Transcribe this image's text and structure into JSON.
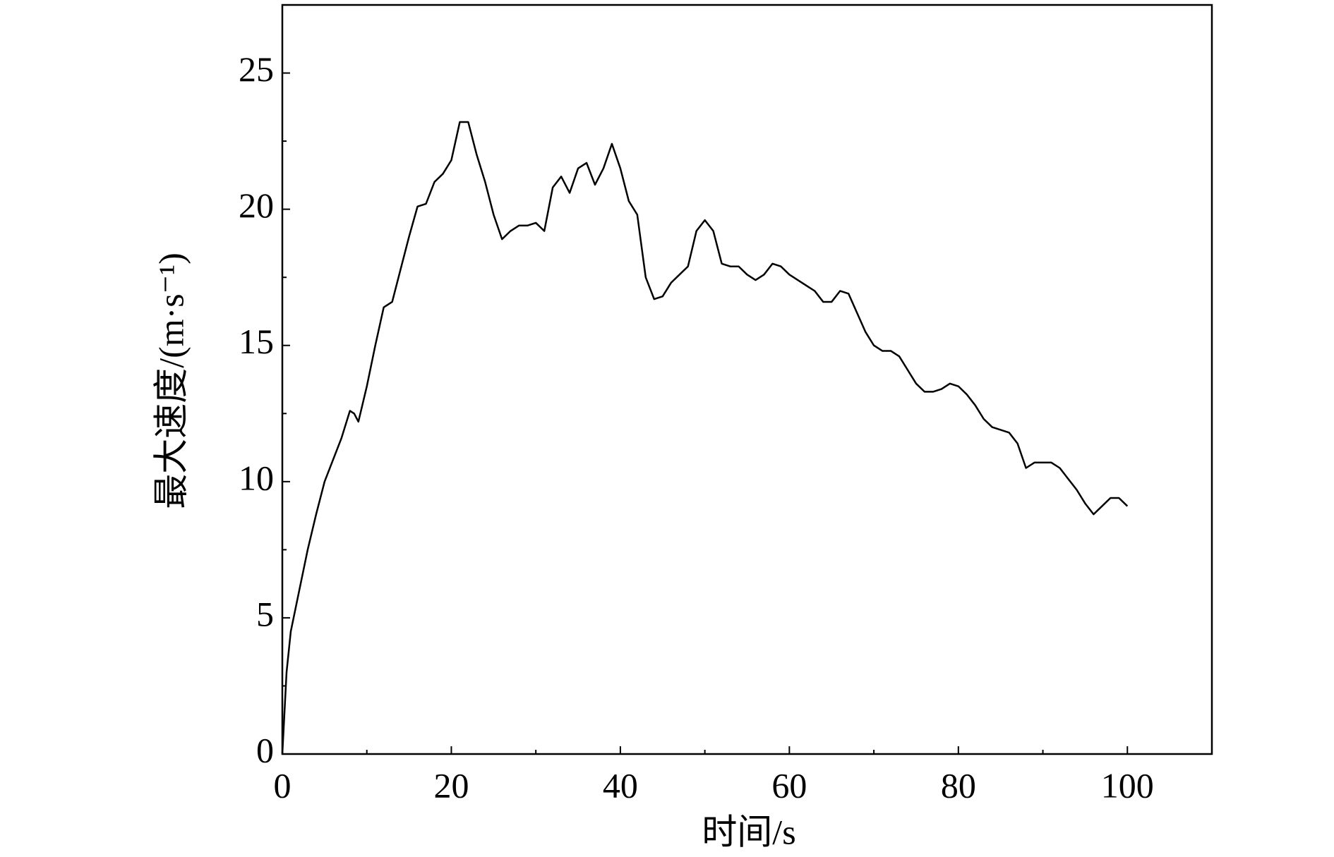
{
  "chart_data": {
    "type": "line",
    "x_label": "时间/s",
    "y_label": "最大速度/(m·s⁻¹)",
    "xlim": [
      0,
      110
    ],
    "ylim": [
      0,
      27.5
    ],
    "xticks": [
      0,
      20,
      40,
      60,
      80,
      100
    ],
    "xminorticks": [
      10,
      30,
      50,
      70,
      90,
      110
    ],
    "yticks": [
      0,
      5,
      10,
      15,
      20,
      25
    ],
    "yminorticks": [
      2.5,
      7.5,
      12.5,
      17.5,
      22.5,
      27.5
    ],
    "grid": false,
    "series": [
      {
        "color": "#000000",
        "x": [
          0,
          0.5,
          1,
          2,
          3,
          4,
          5,
          6,
          7,
          8,
          8.5,
          9,
          10,
          11,
          12,
          13,
          14,
          15,
          16,
          17,
          18,
          19,
          20,
          21,
          22,
          23,
          24,
          25,
          26,
          27,
          28,
          29,
          30,
          31,
          32,
          33,
          34,
          35,
          36,
          37,
          38,
          39,
          40,
          41,
          42,
          43,
          44,
          45,
          46,
          47,
          48,
          49,
          50,
          51,
          52,
          53,
          54,
          55,
          56,
          57,
          58,
          59,
          60,
          61,
          62,
          63,
          64,
          65,
          66,
          67,
          68,
          69,
          70,
          71,
          72,
          73,
          74,
          75,
          76,
          77,
          78,
          79,
          80,
          81,
          82,
          83,
          84,
          85,
          86,
          87,
          88,
          89,
          90,
          91,
          92,
          93,
          94,
          95,
          96,
          97,
          98,
          99,
          100
        ],
        "values": [
          0,
          3,
          4.5,
          6,
          7.5,
          8.8,
          10,
          10.8,
          11.6,
          12.6,
          12.5,
          12.2,
          13.5,
          15,
          16.4,
          16.6,
          17.8,
          19,
          20.1,
          20.2,
          21,
          21.3,
          21.8,
          23.2,
          23.2,
          22,
          21,
          19.8,
          18.9,
          19.2,
          19.4,
          19.4,
          19.5,
          19.2,
          20.8,
          21.2,
          20.6,
          21.5,
          21.7,
          20.9,
          21.5,
          22.4,
          21.5,
          20.3,
          19.8,
          17.5,
          16.7,
          16.8,
          17.3,
          17.6,
          17.9,
          19.2,
          19.6,
          19.2,
          18,
          17.9,
          17.9,
          17.6,
          17.4,
          17.6,
          18,
          17.9,
          17.6,
          17.4,
          17.2,
          17,
          16.6,
          16.6,
          17,
          16.9,
          16.2,
          15.5,
          15,
          14.8,
          14.8,
          14.6,
          14.1,
          13.6,
          13.3,
          13.3,
          13.4,
          13.6,
          13.5,
          13.2,
          12.8,
          12.3,
          12,
          11.9,
          11.8,
          11.4,
          10.5,
          10.7,
          10.7,
          10.7,
          10.5,
          10.1,
          9.7,
          9.2,
          8.8,
          9.1,
          9.4,
          9.4,
          9.1
        ]
      }
    ]
  }
}
